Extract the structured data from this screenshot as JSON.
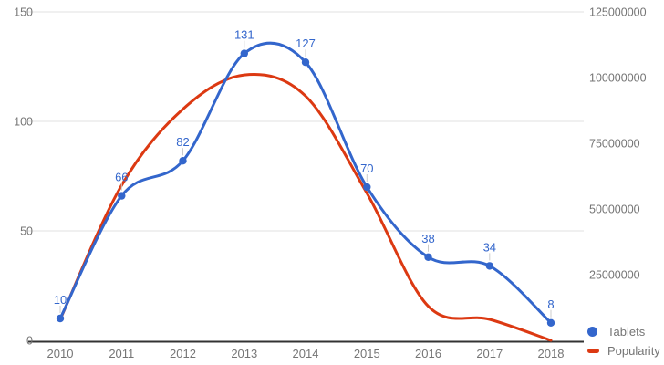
{
  "chart_data": {
    "type": "line",
    "title": "",
    "categories": [
      "2010",
      "2011",
      "2012",
      "2013",
      "2014",
      "2015",
      "2016",
      "2017",
      "2018"
    ],
    "series": [
      {
        "name": "Tablets",
        "axis": "left",
        "color": "#3366CC",
        "values": [
          10,
          66,
          82,
          131,
          127,
          70,
          38,
          34,
          8
        ],
        "point_markers": true,
        "annotations": [
          10,
          66,
          82,
          131,
          127,
          70,
          38,
          34,
          8
        ]
      },
      {
        "name": "Popularity",
        "axis": "right",
        "color": "#DC3912",
        "values": [
          8000000,
          59000000,
          88000000,
          101000000,
          93000000,
          56000000,
          13000000,
          8000000,
          0
        ],
        "point_markers": false,
        "annotations": null
      }
    ],
    "left_axis": {
      "range": [
        0,
        150
      ],
      "ticks": [
        0,
        50,
        100,
        150
      ]
    },
    "right_axis": {
      "range": [
        0,
        125000000
      ],
      "ticks": [
        25000000,
        50000000,
        75000000,
        100000000,
        125000000
      ]
    },
    "grid": true,
    "curve": "smooth",
    "legend": {
      "position": "bottom-right",
      "entries": [
        {
          "label": "Tablets",
          "color": "#3366CC",
          "marker": "circle"
        },
        {
          "label": "Popularity",
          "color": "#DC3912",
          "marker": "line"
        }
      ]
    },
    "colors": {
      "grid": "#e0e0e0",
      "baseline": "#333333",
      "axis_text": "#757575",
      "annotation_text": "#3366CC",
      "annotation_stem": "#cccccc",
      "background": "#ffffff"
    }
  }
}
